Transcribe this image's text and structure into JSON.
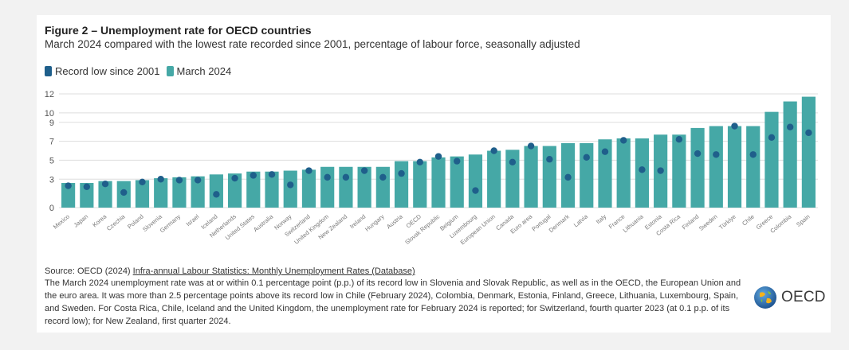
{
  "header": {
    "title": "Figure 2 – Unemployment rate for OECD countries",
    "subtitle": "March 2024 compared with the lowest rate recorded since 2001, percentage of labour force, seasonally adjusted"
  },
  "legend": {
    "record_low": "Record low since 2001",
    "march": "March 2024"
  },
  "colors": {
    "bar": "#45a8a6",
    "dot": "#1f5f8b",
    "grid": "#dddddd"
  },
  "chart_data": {
    "type": "bar",
    "categories": [
      "Mexico",
      "Japan",
      "Korea",
      "Czechia",
      "Poland",
      "Slovenia",
      "Germany",
      "Israel",
      "Iceland",
      "Netherlands",
      "United States",
      "Australia",
      "Norway",
      "Switzerland",
      "United Kingdom",
      "New Zealand",
      "Ireland",
      "Hungary",
      "Austria",
      "OECD",
      "Slovak Republic",
      "Belgium",
      "Luxembourg",
      "European Union",
      "Canada",
      "Euro area",
      "Portugal",
      "Denmark",
      "Latvia",
      "Italy",
      "France",
      "Lithuania",
      "Estonia",
      "Costa Rica",
      "Finland",
      "Sweden",
      "Türkiye",
      "Chile",
      "Greece",
      "Colombia",
      "Spain"
    ],
    "series": [
      {
        "name": "March 2024",
        "values": [
          2.6,
          2.6,
          2.8,
          2.8,
          2.9,
          3.1,
          3.2,
          3.3,
          3.5,
          3.6,
          3.8,
          3.8,
          3.9,
          4.0,
          4.3,
          4.3,
          4.3,
          4.3,
          4.9,
          4.9,
          5.3,
          5.4,
          5.6,
          6.0,
          6.1,
          6.5,
          6.5,
          6.8,
          6.8,
          7.2,
          7.3,
          7.3,
          7.7,
          7.7,
          8.4,
          8.6,
          8.6,
          8.6,
          10.1,
          11.2,
          11.7
        ]
      },
      {
        "name": "Record low since 2001",
        "values": [
          2.3,
          2.2,
          2.5,
          1.6,
          2.7,
          3.0,
          2.9,
          2.9,
          1.4,
          3.1,
          3.4,
          3.5,
          2.4,
          3.9,
          3.2,
          3.2,
          3.9,
          3.2,
          3.6,
          4.8,
          5.4,
          4.9,
          1.8,
          6.0,
          4.8,
          6.5,
          5.1,
          3.2,
          5.3,
          5.9,
          7.1,
          4.0,
          3.9,
          7.2,
          5.7,
          5.6,
          8.6,
          5.6,
          7.4,
          8.5,
          7.9
        ]
      }
    ],
    "y_ticks": [
      "0",
      "3",
      "5",
      "7",
      "9",
      "10",
      "12"
    ],
    "ylim": [
      0,
      12
    ],
    "grid": true,
    "legend_position": "top-left"
  },
  "footer": {
    "source_prefix": "Source: OECD (2024) ",
    "source_link": "Infra-annual Labour Statistics: Monthly Unemployment Rates (Database)",
    "note": "The March 2024 unemployment rate was at or within 0.1 percentage point (p.p.) of its record low in Slovenia and Slovak Republic, as well as in the OECD, the European Union and the euro area. It was more than 2.5 percentage points above its record low in Chile (February 2024), Colombia, Denmark, Estonia, Finland, Greece, Lithuania, Luxembourg, Spain, and Sweden. For Costa Rica, Chile, Iceland and the United Kingdom, the unemployment rate for February 2024 is reported; for Switzerland, fourth quarter 2023 (at 0.1 p.p. of its record low); for New Zealand, first quarter 2024.",
    "logo_text": "OECD"
  }
}
